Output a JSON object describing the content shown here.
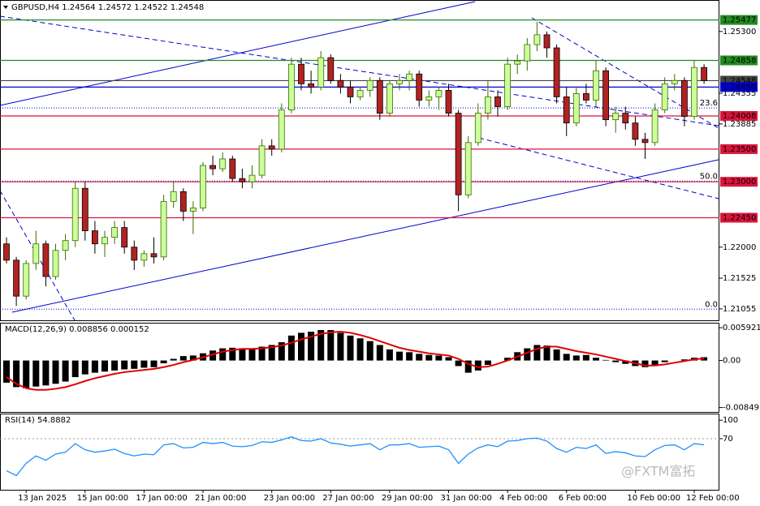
{
  "chart_data": [
    {
      "type": "candlestick",
      "title": "GBPUSD,H4  1.24564 1.24572 1.24522 1.24548",
      "categories": [
        null,
        null,
        "13 Jan 2025",
        null,
        null,
        null,
        null,
        null,
        "15 Jan 00:00",
        null,
        null,
        null,
        null,
        null,
        "17 Jan 00:00",
        null,
        null,
        null,
        null,
        null,
        "21 Jan 00:00",
        null,
        null,
        null,
        null,
        null,
        null,
        "23 Jan 00:00",
        null,
        null,
        null,
        null,
        null,
        "27 Jan 00:00",
        null,
        null,
        null,
        null,
        null,
        "29 Jan 00:00",
        null,
        null,
        null,
        null,
        null,
        "31 Jan 00:00",
        null,
        null,
        null,
        null,
        null,
        "4 Feb 00:00",
        null,
        null,
        null,
        null,
        null,
        "6 Feb 00:00",
        null,
        null,
        null,
        null,
        null,
        null,
        "10 Feb 00:00",
        null,
        null,
        null,
        null,
        null,
        "12 Feb 00:00",
        null
      ],
      "open": [
        1.2205,
        1.218,
        1.2125,
        1.2175,
        1.2205,
        1.2155,
        1.2195,
        1.221,
        1.229,
        1.2225,
        1.2205,
        1.2215,
        1.223,
        1.22,
        1.218,
        1.219,
        1.2185,
        1.227,
        1.2285,
        1.2255,
        1.226,
        1.2325,
        1.232,
        1.2335,
        1.2305,
        1.23,
        1.231,
        1.2355,
        1.235,
        1.241,
        1.248,
        1.245,
        1.2445,
        1.249,
        1.2455,
        1.2445,
        1.243,
        1.244,
        1.2455,
        1.2405,
        1.245,
        1.2455,
        1.2465,
        1.2425,
        1.243,
        1.244,
        1.2405,
        1.228,
        1.236,
        1.2405,
        1.243,
        1.2415,
        1.248,
        1.2485,
        1.251,
        1.2525,
        1.2505,
        1.243,
        1.239,
        1.2435,
        1.2425,
        1.247,
        1.2395,
        1.2405,
        1.239,
        1.2365,
        1.236,
        1.241,
        1.245,
        1.2455,
        1.24,
        1.2475
      ],
      "high": [
        1.2215,
        1.2185,
        1.218,
        1.2225,
        1.221,
        1.2205,
        1.222,
        1.23,
        1.23,
        1.224,
        1.2225,
        1.224,
        1.224,
        1.221,
        1.2195,
        1.2215,
        1.228,
        1.23,
        1.229,
        1.227,
        1.233,
        1.234,
        1.2345,
        1.234,
        1.232,
        1.2325,
        1.2365,
        1.2365,
        1.242,
        1.249,
        1.249,
        1.247,
        1.25,
        1.2495,
        1.2465,
        1.2455,
        1.2445,
        1.246,
        1.246,
        1.2455,
        1.2465,
        1.247,
        1.247,
        1.244,
        1.2445,
        1.245,
        1.241,
        1.237,
        1.242,
        1.2455,
        1.244,
        1.249,
        1.2495,
        1.252,
        1.2545,
        1.253,
        1.251,
        1.2445,
        1.2445,
        1.245,
        1.2485,
        1.2475,
        1.2415,
        1.2415,
        1.24,
        1.2375,
        1.242,
        1.246,
        1.2465,
        1.246,
        1.2485,
        1.248
      ],
      "low": [
        1.2175,
        1.211,
        1.212,
        1.2165,
        1.214,
        1.215,
        1.218,
        1.22,
        1.221,
        1.219,
        1.2185,
        1.2205,
        1.219,
        1.2165,
        1.217,
        1.2175,
        1.218,
        1.226,
        1.224,
        1.222,
        1.2255,
        1.231,
        1.2315,
        1.23,
        1.229,
        1.229,
        1.2305,
        1.234,
        1.2345,
        1.2405,
        1.244,
        1.2435,
        1.244,
        1.245,
        1.2435,
        1.242,
        1.2425,
        1.243,
        1.2395,
        1.24,
        1.244,
        1.244,
        1.2415,
        1.2415,
        1.241,
        1.24,
        1.2255,
        1.2275,
        1.2355,
        1.2395,
        1.24,
        1.241,
        1.2465,
        1.247,
        1.25,
        1.249,
        1.242,
        1.237,
        1.2385,
        1.242,
        1.2415,
        1.2385,
        1.2375,
        1.238,
        1.2355,
        1.2335,
        1.2355,
        1.2405,
        1.244,
        1.2385,
        1.2395,
        1.245
      ],
      "close": [
        1.218,
        1.2125,
        1.2175,
        1.2205,
        1.2155,
        1.2195,
        1.221,
        1.229,
        1.2225,
        1.2205,
        1.2215,
        1.223,
        1.22,
        1.218,
        1.219,
        1.2185,
        1.227,
        1.2285,
        1.2255,
        1.226,
        1.2325,
        1.232,
        1.2335,
        1.2305,
        1.23,
        1.231,
        1.2355,
        1.235,
        1.241,
        1.248,
        1.245,
        1.2445,
        1.249,
        1.2455,
        1.2445,
        1.243,
        1.244,
        1.2455,
        1.2405,
        1.245,
        1.2455,
        1.2465,
        1.2425,
        1.243,
        1.244,
        1.2405,
        1.228,
        1.236,
        1.2405,
        1.243,
        1.2415,
        1.248,
        1.2485,
        1.251,
        1.2525,
        1.2505,
        1.243,
        1.239,
        1.2435,
        1.2425,
        1.247,
        1.2395,
        1.2405,
        1.239,
        1.2365,
        1.236,
        1.241,
        1.245,
        1.2455,
        1.24,
        1.2475,
        1.2455
      ],
      "up_color": "#ccff99",
      "down_color": "#b22222",
      "ylim": [
        1.2088,
        1.2577
      ],
      "yticks": [
        {
          "value": 1.253,
          "label": "1.25300"
        },
        {
          "value": 1.24355,
          "label": "1.24355"
        },
        {
          "value": 1.23885,
          "label": "1.23885"
        },
        {
          "value": 1.22,
          "label": "1.22000"
        },
        {
          "value": 1.21525,
          "label": "1.21525"
        },
        {
          "value": 1.21055,
          "label": "1.21055"
        }
      ],
      "levels": [
        {
          "value": 1.25477,
          "label": "1.25477",
          "color": "#228b22"
        },
        {
          "value": 1.24858,
          "label": "1.24858",
          "color": "#228b22"
        },
        {
          "value": 1.24548,
          "label": "1.24548",
          "color": "#444444"
        },
        {
          "value": 1.2445,
          "label": "1.24450",
          "color": "#0000cd"
        },
        {
          "value": 1.24008,
          "label": "1.24008",
          "color": "#dc143c"
        },
        {
          "value": 1.235,
          "label": "1.23500",
          "color": "#dc143c"
        },
        {
          "value": 1.23,
          "label": "1.23000",
          "color": "#dc143c"
        },
        {
          "value": 1.2245,
          "label": "1.22450",
          "color": "#dc143c"
        }
      ],
      "fib": [
        {
          "price": 1.2413,
          "label": "23.6"
        },
        {
          "price": 1.2301,
          "label": "50.0"
        },
        {
          "price": 1.2105,
          "label": "0.0"
        }
      ],
      "fib_color": "#0000cd"
    },
    {
      "type": "macd",
      "title": "MACD(12,26,9) 0.008856 0.000152",
      "values": [
        -0.004,
        -0.0048,
        -0.005,
        -0.0047,
        -0.0045,
        -0.0042,
        -0.0038,
        -0.003,
        -0.0025,
        -0.0022,
        -0.002,
        -0.0018,
        -0.0016,
        -0.0015,
        -0.0013,
        -0.0012,
        -0.0005,
        0.0003,
        0.0008,
        0.0009,
        0.0013,
        0.0018,
        0.0022,
        0.0023,
        0.0022,
        0.0021,
        0.0025,
        0.0028,
        0.0033,
        0.0045,
        0.005,
        0.0052,
        0.0055,
        0.0055,
        0.005,
        0.0045,
        0.004,
        0.0035,
        0.0028,
        0.002,
        0.0016,
        0.0015,
        0.0012,
        0.001,
        0.0009,
        0.0006,
        -0.001,
        -0.0022,
        -0.0018,
        -0.0008,
        0.0,
        0.0005,
        0.0015,
        0.0022,
        0.0028,
        0.0027,
        0.002,
        0.0012,
        0.0009,
        0.001,
        0.0005,
        0.0001,
        -0.0003,
        -0.0006,
        -0.001,
        -0.0012,
        -0.0008,
        -0.0003,
        0.0,
        0.0002,
        0.0005,
        0.0006
      ],
      "signal": [
        -0.003,
        -0.0042,
        -0.005,
        -0.0053,
        -0.0053,
        -0.0051,
        -0.0048,
        -0.0043,
        -0.0037,
        -0.0032,
        -0.0028,
        -0.0024,
        -0.0021,
        -0.0019,
        -0.0017,
        -0.0015,
        -0.0012,
        -0.0008,
        -0.0003,
        0.0001,
        0.0006,
        0.0011,
        0.0016,
        0.0019,
        0.0021,
        0.0021,
        0.0022,
        0.0024,
        0.0027,
        0.0032,
        0.0038,
        0.0043,
        0.0048,
        0.0051,
        0.0052,
        0.005,
        0.0046,
        0.0041,
        0.0035,
        0.0029,
        0.0023,
        0.0019,
        0.0016,
        0.0013,
        0.0011,
        0.0009,
        0.0003,
        -0.0006,
        -0.0012,
        -0.0011,
        -0.0006,
        0.0,
        0.0007,
        0.0014,
        0.0021,
        0.0025,
        0.0025,
        0.0021,
        0.0017,
        0.0014,
        0.0011,
        0.0007,
        0.0003,
        -0.0001,
        -0.0005,
        -0.0009,
        -0.0009,
        -0.0007,
        -0.0004,
        -0.0001,
        0.0002,
        0.0004
      ],
      "color": "#000000",
      "signal_color": "#e00000",
      "ylim": [
        -0.00928,
        0.00667
      ],
      "yticks": [
        {
          "value": 0.005921,
          "label": "0.005921"
        },
        {
          "value": 0,
          "label": "0.00"
        },
        {
          "value": -0.00849,
          "label": "-0.00849"
        }
      ]
    },
    {
      "type": "line",
      "title": "RSI(14) 54.8882",
      "values": [
        18,
        10,
        30,
        42,
        35,
        45,
        48,
        62,
        52,
        48,
        50,
        53,
        46,
        42,
        45,
        44,
        60,
        62,
        55,
        56,
        64,
        62,
        64,
        58,
        57,
        59,
        65,
        64,
        68,
        73,
        67,
        66,
        70,
        63,
        61,
        58,
        60,
        62,
        52,
        60,
        60,
        62,
        56,
        57,
        58,
        52,
        30,
        45,
        55,
        60,
        57,
        66,
        67,
        70,
        71,
        66,
        54,
        48,
        56,
        54,
        60,
        46,
        49,
        47,
        42,
        41,
        52,
        59,
        60,
        52,
        62,
        60
      ],
      "color": "#1e90ff",
      "ylim": [
        -13,
        109.5
      ],
      "yticks": [
        100,
        70
      ]
    }
  ],
  "watermark": "@FXTM富拓"
}
